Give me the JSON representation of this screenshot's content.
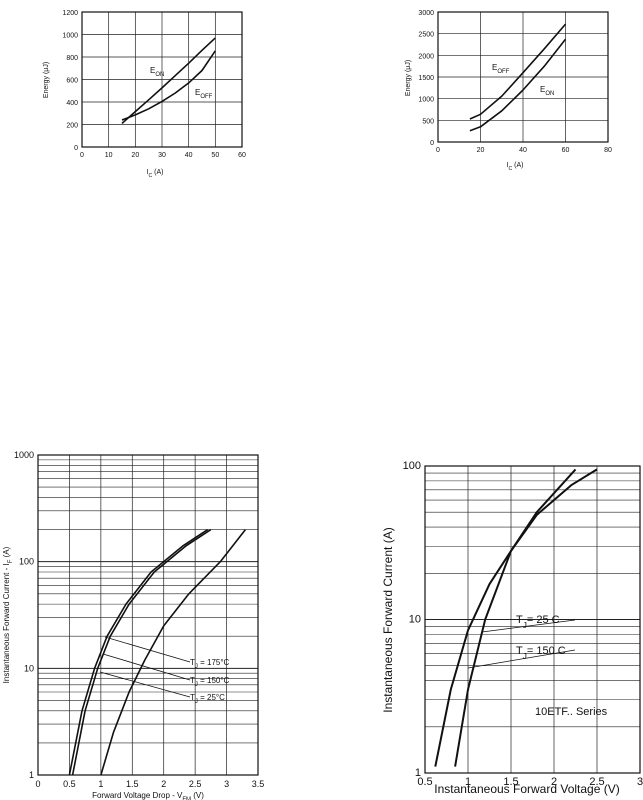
{
  "chart_data": [
    {
      "type": "line",
      "xlabel": "I",
      "xlabel_sub": "C",
      "xlabel_unit": " (A)",
      "ylabel": "Energy (μJ)",
      "xlim": [
        0,
        60
      ],
      "ylim": [
        0,
        1200
      ],
      "x_ticks": [
        0,
        10,
        20,
        30,
        40,
        50,
        60
      ],
      "y_ticks": [
        0,
        200,
        400,
        600,
        800,
        1000,
        1200
      ],
      "grid": true,
      "series": [
        {
          "name": "E",
          "name_sub": "ON",
          "x": [
            15,
            20,
            25,
            30,
            35,
            40,
            45,
            50
          ],
          "y": [
            210,
            315,
            420,
            525,
            635,
            745,
            860,
            970
          ]
        },
        {
          "name": "E",
          "name_sub": "OFF",
          "x": [
            15,
            20,
            25,
            30,
            35,
            40,
            45,
            50
          ],
          "y": [
            240,
            285,
            340,
            405,
            480,
            570,
            680,
            855
          ]
        }
      ]
    },
    {
      "type": "line",
      "xlabel": "I",
      "xlabel_sub": "C",
      "xlabel_unit": " (A)",
      "ylabel": "Energy (μJ)",
      "xlim": [
        0,
        80
      ],
      "ylim": [
        0,
        3000
      ],
      "x_ticks": [
        0,
        20,
        40,
        60,
        80
      ],
      "y_ticks": [
        0,
        500,
        1000,
        1500,
        2000,
        2500,
        3000
      ],
      "grid": true,
      "series": [
        {
          "name": "E",
          "name_sub": "OFF",
          "x": [
            15,
            20,
            30,
            40,
            50,
            60
          ],
          "y": [
            530,
            640,
            1060,
            1600,
            2150,
            2720
          ]
        },
        {
          "name": "E",
          "name_sub": "ON",
          "x": [
            15,
            20,
            30,
            40,
            50,
            60
          ],
          "y": [
            260,
            350,
            720,
            1200,
            1750,
            2370
          ]
        }
      ]
    },
    {
      "type": "line",
      "xlabel": "Forward Voltage Drop - V",
      "xlabel_sub": "FM",
      "xlabel_unit": " (V)",
      "ylabel": "Instantaneous Forward Current - I",
      "ylabel_sub": "F",
      "ylabel_unit": " (A)",
      "xlim": [
        0,
        3.5
      ],
      "ylim": [
        1,
        1000
      ],
      "y_scale": "log",
      "x_ticks": [
        "0",
        "0.5",
        "1",
        "1.5",
        "2",
        "2.5",
        "3",
        "3.5"
      ],
      "y_ticks": [
        "1",
        "10",
        "100",
        "1000"
      ],
      "grid": true,
      "series": [
        {
          "name": "T",
          "name_sub": "J",
          "name_tail": " = 175°C",
          "x": [
            0.5,
            0.7,
            0.9,
            1.1,
            1.4,
            1.8,
            2.3,
            2.7
          ],
          "y": [
            1,
            4,
            10,
            20,
            40,
            80,
            140,
            200
          ]
        },
        {
          "name": "T",
          "name_sub": "J",
          "name_tail": " = 150°C",
          "x": [
            0.55,
            0.75,
            0.95,
            1.15,
            1.45,
            1.85,
            2.35,
            2.75
          ],
          "y": [
            1,
            4,
            10,
            20,
            40,
            80,
            140,
            200
          ]
        },
        {
          "name": "T",
          "name_sub": "J",
          "name_tail": " = 25°C",
          "x": [
            1.0,
            1.2,
            1.45,
            1.7,
            2.0,
            2.4,
            2.9,
            3.3
          ],
          "y": [
            1,
            2.5,
            6,
            12,
            25,
            50,
            100,
            200
          ]
        }
      ]
    },
    {
      "type": "line",
      "xlabel": "Instantaneous Forward Voltage (V)",
      "ylabel": "Instantaneous Forward Current (A)",
      "xlim": [
        0.5,
        3
      ],
      "ylim": [
        1,
        100
      ],
      "y_scale": "log",
      "x_ticks": [
        "0.5",
        "1",
        "1.5",
        "2",
        "2.5",
        "3"
      ],
      "y_ticks": [
        "1",
        "10",
        "100"
      ],
      "grid": true,
      "annotation": "10ETF.. Series",
      "series": [
        {
          "name": "T",
          "name_sub": "J",
          "name_tail": "= 25 C",
          "x": [
            0.85,
            1.0,
            1.2,
            1.5,
            1.8,
            2.2,
            2.5
          ],
          "y": [
            1.1,
            3.5,
            10,
            28,
            48,
            75,
            95
          ]
        },
        {
          "name": "T",
          "name_sub": "J",
          "name_tail": "= 150 C",
          "x": [
            0.62,
            0.8,
            1.0,
            1.25,
            1.5,
            1.8,
            2.25
          ],
          "y": [
            1.1,
            3.5,
            8.5,
            17,
            28,
            50,
            95
          ]
        }
      ]
    }
  ]
}
